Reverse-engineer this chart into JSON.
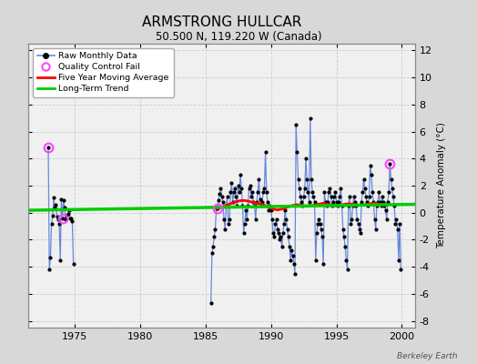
{
  "title": "ARMSTRONG HULLCAR",
  "subtitle": "50.500 N, 119.220 W (Canada)",
  "ylabel": "Temperature Anomaly (°C)",
  "watermark": "Berkeley Earth",
  "xlim": [
    1971.5,
    2001.0
  ],
  "ylim": [
    -8.5,
    12.5
  ],
  "yticks": [
    -8,
    -6,
    -4,
    -2,
    0,
    2,
    4,
    6,
    8,
    10,
    12
  ],
  "xticks": [
    1975,
    1980,
    1985,
    1990,
    1995,
    2000
  ],
  "fig_bg_color": "#d8d8d8",
  "plot_bg_color": "#f0f0f0",
  "grid_color": "#cccccc",
  "raw_line_color": "#6688dd",
  "raw_dot_color": "#000000",
  "ma_color": "#ff0000",
  "trend_color": "#00cc00",
  "qc_color": "#ff44ff",
  "raw_monthly": [
    [
      1973.0,
      4.8
    ],
    [
      1973.083,
      -4.2
    ],
    [
      1973.167,
      -3.3
    ],
    [
      1973.25,
      -0.8
    ],
    [
      1973.333,
      -0.2
    ],
    [
      1973.417,
      1.1
    ],
    [
      1973.5,
      0.4
    ],
    [
      1973.583,
      0.6
    ],
    [
      1973.667,
      -0.3
    ],
    [
      1973.75,
      -0.5
    ],
    [
      1973.833,
      -0.8
    ],
    [
      1973.917,
      -3.5
    ],
    [
      1974.0,
      1.0
    ],
    [
      1974.083,
      -0.4
    ],
    [
      1974.167,
      0.9
    ],
    [
      1974.25,
      0.4
    ],
    [
      1974.333,
      -0.5
    ],
    [
      1974.417,
      -0.2
    ],
    [
      1974.5,
      -0.1
    ],
    [
      1974.583,
      0.2
    ],
    [
      1974.667,
      -0.4
    ],
    [
      1974.75,
      -0.4
    ],
    [
      1974.833,
      -0.6
    ],
    [
      1974.917,
      -3.8
    ],
    [
      1985.417,
      -6.7
    ],
    [
      1985.5,
      -3.0
    ],
    [
      1985.583,
      -2.5
    ],
    [
      1985.667,
      -1.8
    ],
    [
      1985.75,
      -1.2
    ],
    [
      1985.833,
      0.3
    ],
    [
      1985.917,
      0.35
    ],
    [
      1986.0,
      0.9
    ],
    [
      1986.083,
      1.4
    ],
    [
      1986.167,
      1.8
    ],
    [
      1986.25,
      1.2
    ],
    [
      1986.333,
      0.8
    ],
    [
      1986.417,
      -0.5
    ],
    [
      1986.5,
      -1.2
    ],
    [
      1986.583,
      0.5
    ],
    [
      1986.667,
      1.2
    ],
    [
      1986.75,
      -0.8
    ],
    [
      1986.833,
      -0.5
    ],
    [
      1986.917,
      1.5
    ],
    [
      1987.0,
      2.2
    ],
    [
      1987.083,
      0.8
    ],
    [
      1987.167,
      1.5
    ],
    [
      1987.25,
      1.8
    ],
    [
      1987.333,
      1.2
    ],
    [
      1987.417,
      0.5
    ],
    [
      1987.5,
      2.0
    ],
    [
      1987.583,
      1.5
    ],
    [
      1987.667,
      2.8
    ],
    [
      1987.75,
      1.8
    ],
    [
      1987.833,
      0.5
    ],
    [
      1987.917,
      -1.5
    ],
    [
      1988.0,
      -0.8
    ],
    [
      1988.083,
      0.2
    ],
    [
      1988.167,
      -0.5
    ],
    [
      1988.25,
      0.5
    ],
    [
      1988.333,
      1.8
    ],
    [
      1988.417,
      2.0
    ],
    [
      1988.5,
      1.2
    ],
    [
      1988.583,
      1.5
    ],
    [
      1988.667,
      0.8
    ],
    [
      1988.75,
      0.5
    ],
    [
      1988.833,
      -0.5
    ],
    [
      1988.917,
      0.8
    ],
    [
      1989.0,
      1.5
    ],
    [
      1989.083,
      2.5
    ],
    [
      1989.167,
      1.0
    ],
    [
      1989.25,
      0.5
    ],
    [
      1989.333,
      0.8
    ],
    [
      1989.417,
      1.5
    ],
    [
      1989.5,
      1.8
    ],
    [
      1989.583,
      4.5
    ],
    [
      1989.667,
      1.5
    ],
    [
      1989.75,
      0.8
    ],
    [
      1989.833,
      0.2
    ],
    [
      1989.917,
      0.5
    ],
    [
      1990.0,
      0.2
    ],
    [
      1990.083,
      -0.5
    ],
    [
      1990.167,
      -1.5
    ],
    [
      1990.25,
      -1.8
    ],
    [
      1990.333,
      -0.8
    ],
    [
      1990.417,
      -0.5
    ],
    [
      1990.5,
      -1.2
    ],
    [
      1990.583,
      -1.5
    ],
    [
      1990.667,
      -2.0
    ],
    [
      1990.75,
      -1.8
    ],
    [
      1990.833,
      -2.5
    ],
    [
      1990.917,
      -1.5
    ],
    [
      1991.0,
      -0.8
    ],
    [
      1991.083,
      0.2
    ],
    [
      1991.167,
      -0.5
    ],
    [
      1991.25,
      -1.2
    ],
    [
      1991.333,
      -1.8
    ],
    [
      1991.417,
      -2.5
    ],
    [
      1991.5,
      -3.5
    ],
    [
      1991.583,
      -2.8
    ],
    [
      1991.667,
      -3.2
    ],
    [
      1991.75,
      -3.8
    ],
    [
      1991.833,
      -4.5
    ],
    [
      1991.917,
      6.5
    ],
    [
      1992.0,
      4.5
    ],
    [
      1992.083,
      2.5
    ],
    [
      1992.167,
      1.8
    ],
    [
      1992.25,
      1.2
    ],
    [
      1992.333,
      0.8
    ],
    [
      1992.417,
      0.5
    ],
    [
      1992.5,
      1.2
    ],
    [
      1992.583,
      1.8
    ],
    [
      1992.667,
      4.0
    ],
    [
      1992.75,
      2.5
    ],
    [
      1992.833,
      1.5
    ],
    [
      1992.917,
      0.8
    ],
    [
      1993.0,
      7.0
    ],
    [
      1993.083,
      2.5
    ],
    [
      1993.167,
      1.5
    ],
    [
      1993.25,
      1.2
    ],
    [
      1993.333,
      0.8
    ],
    [
      1993.417,
      -3.5
    ],
    [
      1993.5,
      -1.5
    ],
    [
      1993.583,
      -0.8
    ],
    [
      1993.667,
      -0.5
    ],
    [
      1993.75,
      -0.8
    ],
    [
      1993.833,
      -1.2
    ],
    [
      1993.917,
      -1.8
    ],
    [
      1994.0,
      -3.8
    ],
    [
      1994.083,
      1.5
    ],
    [
      1994.167,
      0.8
    ],
    [
      1994.25,
      0.5
    ],
    [
      1994.333,
      0.8
    ],
    [
      1994.417,
      1.5
    ],
    [
      1994.5,
      1.8
    ],
    [
      1994.583,
      1.2
    ],
    [
      1994.667,
      0.5
    ],
    [
      1994.75,
      0.8
    ],
    [
      1994.833,
      1.2
    ],
    [
      1994.917,
      1.5
    ],
    [
      1995.0,
      0.8
    ],
    [
      1995.083,
      0.5
    ],
    [
      1995.167,
      0.8
    ],
    [
      1995.25,
      1.2
    ],
    [
      1995.333,
      1.8
    ],
    [
      1995.417,
      0.5
    ],
    [
      1995.5,
      -1.2
    ],
    [
      1995.583,
      -1.8
    ],
    [
      1995.667,
      -2.5
    ],
    [
      1995.75,
      -3.5
    ],
    [
      1995.833,
      -4.2
    ],
    [
      1995.917,
      0.5
    ],
    [
      1996.0,
      1.2
    ],
    [
      1996.083,
      -0.8
    ],
    [
      1996.167,
      -0.5
    ],
    [
      1996.25,
      0.5
    ],
    [
      1996.333,
      1.2
    ],
    [
      1996.417,
      0.8
    ],
    [
      1996.5,
      0.5
    ],
    [
      1996.583,
      -0.5
    ],
    [
      1996.667,
      -0.8
    ],
    [
      1996.75,
      -1.2
    ],
    [
      1996.833,
      -1.5
    ],
    [
      1996.917,
      0.8
    ],
    [
      1997.0,
      1.5
    ],
    [
      1997.083,
      2.5
    ],
    [
      1997.167,
      1.8
    ],
    [
      1997.25,
      1.2
    ],
    [
      1997.333,
      0.8
    ],
    [
      1997.417,
      0.5
    ],
    [
      1997.5,
      1.2
    ],
    [
      1997.583,
      3.5
    ],
    [
      1997.667,
      2.8
    ],
    [
      1997.75,
      1.5
    ],
    [
      1997.833,
      0.8
    ],
    [
      1997.917,
      -0.5
    ],
    [
      1998.0,
      -1.2
    ],
    [
      1998.083,
      0.5
    ],
    [
      1998.167,
      0.8
    ],
    [
      1998.25,
      1.5
    ],
    [
      1998.333,
      0.8
    ],
    [
      1998.417,
      0.5
    ],
    [
      1998.5,
      1.2
    ],
    [
      1998.583,
      0.8
    ],
    [
      1998.667,
      0.5
    ],
    [
      1998.75,
      0.2
    ],
    [
      1998.833,
      -0.5
    ],
    [
      1998.917,
      0.8
    ],
    [
      1999.0,
      1.5
    ],
    [
      1999.083,
      3.6
    ],
    [
      1999.167,
      2.5
    ],
    [
      1999.25,
      1.8
    ],
    [
      1999.333,
      1.2
    ],
    [
      1999.417,
      0.5
    ],
    [
      1999.5,
      -0.8
    ],
    [
      1999.583,
      -0.5
    ],
    [
      1999.667,
      -1.2
    ],
    [
      1999.75,
      -3.5
    ],
    [
      1999.833,
      -0.8
    ],
    [
      1999.917,
      -4.2
    ]
  ],
  "qc_fail_points": [
    [
      1973.0,
      4.8
    ],
    [
      1974.083,
      -0.4
    ],
    [
      1985.917,
      0.35
    ],
    [
      1999.083,
      3.6
    ]
  ],
  "moving_avg": [
    [
      1985.917,
      0.3
    ],
    [
      1986.25,
      0.4
    ],
    [
      1986.5,
      0.5
    ],
    [
      1986.75,
      0.6
    ],
    [
      1987.0,
      0.7
    ],
    [
      1987.25,
      0.8
    ],
    [
      1987.5,
      0.85
    ],
    [
      1987.75,
      0.9
    ],
    [
      1988.0,
      0.9
    ],
    [
      1988.25,
      0.85
    ],
    [
      1988.5,
      0.8
    ],
    [
      1988.75,
      0.75
    ],
    [
      1989.0,
      0.7
    ],
    [
      1989.25,
      0.65
    ],
    [
      1989.5,
      0.55
    ],
    [
      1989.75,
      0.45
    ],
    [
      1990.0,
      0.35
    ],
    [
      1990.25,
      0.25
    ],
    [
      1990.5,
      0.2
    ],
    [
      1990.75,
      0.25
    ],
    [
      1991.0,
      0.3
    ],
    [
      1991.25,
      0.4
    ],
    [
      1991.5,
      0.5
    ],
    [
      1991.75,
      0.55
    ],
    [
      1992.0,
      0.6
    ],
    [
      1992.25,
      0.55
    ],
    [
      1992.5,
      0.5
    ],
    [
      1992.75,
      0.5
    ],
    [
      1993.0,
      0.5
    ],
    [
      1993.25,
      0.55
    ],
    [
      1993.5,
      0.6
    ],
    [
      1993.75,
      0.65
    ],
    [
      1994.0,
      0.7
    ],
    [
      1994.25,
      0.65
    ],
    [
      1994.5,
      0.6
    ],
    [
      1994.75,
      0.55
    ],
    [
      1995.0,
      0.5
    ],
    [
      1995.25,
      0.55
    ],
    [
      1995.5,
      0.6
    ],
    [
      1995.75,
      0.65
    ],
    [
      1996.0,
      0.65
    ],
    [
      1996.25,
      0.65
    ],
    [
      1996.5,
      0.6
    ],
    [
      1996.75,
      0.55
    ],
    [
      1997.0,
      0.55
    ],
    [
      1997.25,
      0.6
    ],
    [
      1997.5,
      0.65
    ],
    [
      1997.75,
      0.7
    ],
    [
      1998.0,
      0.7
    ],
    [
      1998.25,
      0.65
    ],
    [
      1998.5,
      0.6
    ],
    [
      1998.75,
      0.6
    ],
    [
      1999.0,
      0.6
    ]
  ],
  "trend_x": [
    1971.5,
    2001.0
  ],
  "trend_y": [
    0.18,
    0.62
  ]
}
